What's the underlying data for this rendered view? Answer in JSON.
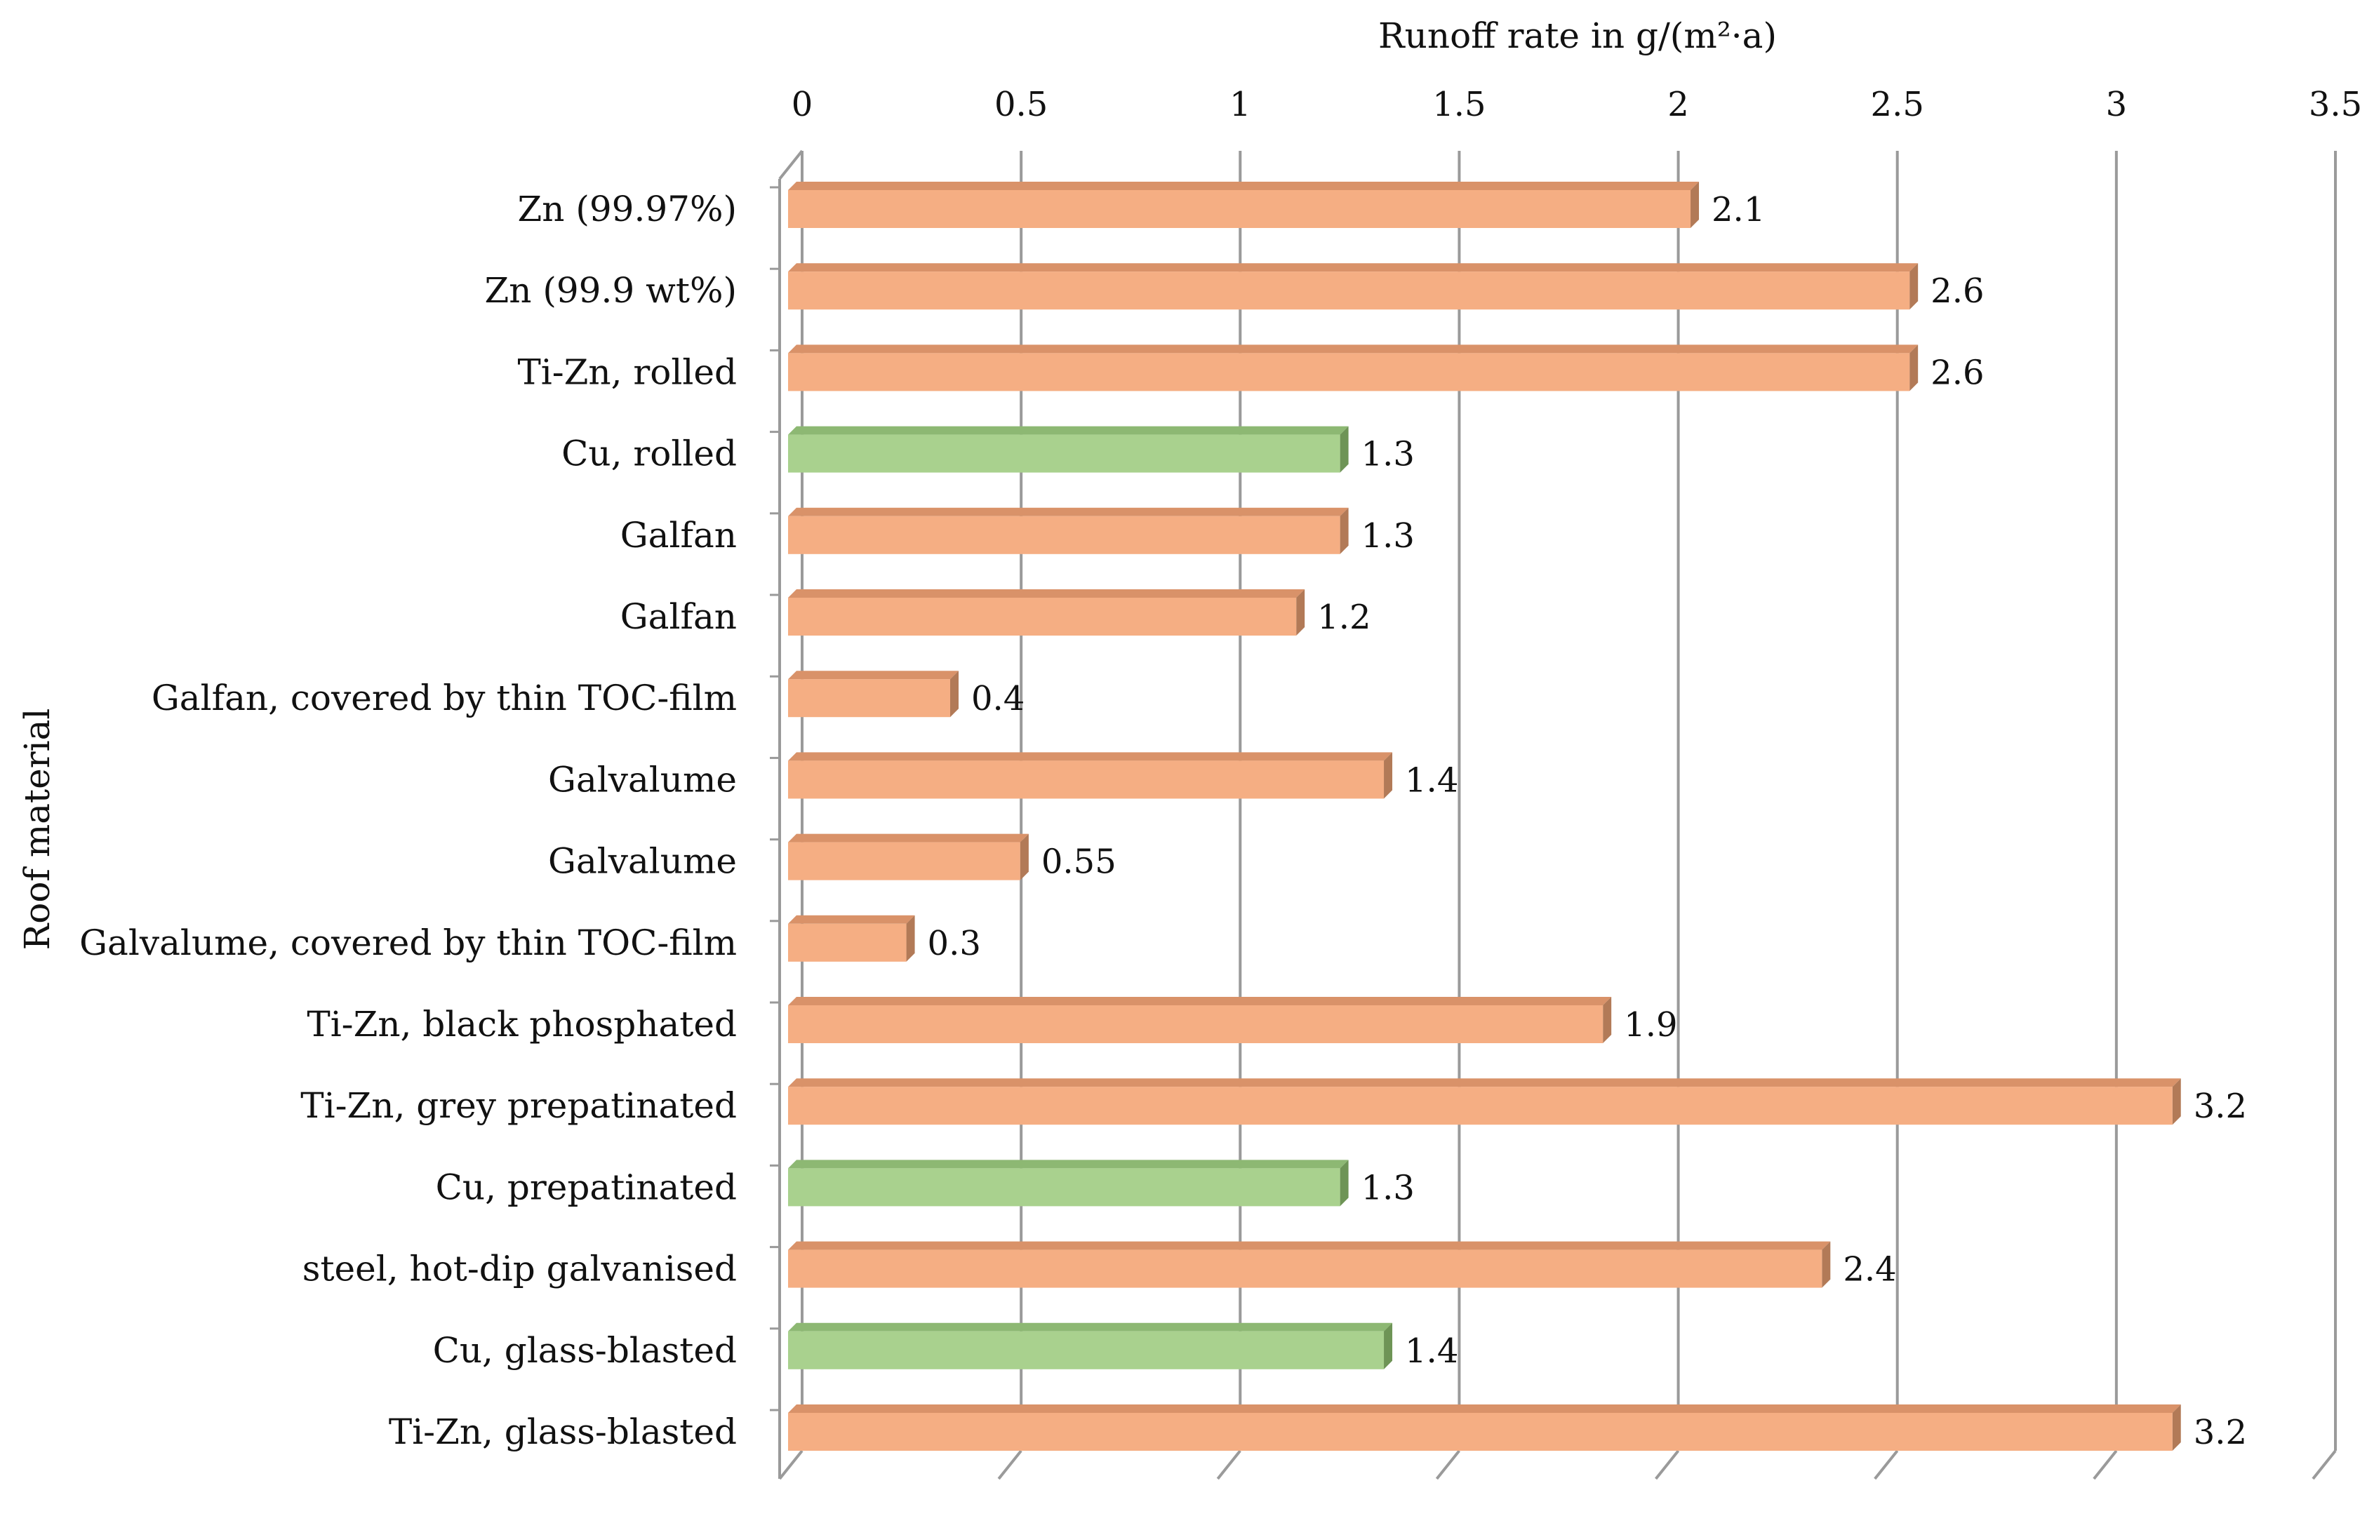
{
  "chart_data": {
    "type": "bar",
    "orientation": "horizontal",
    "title": "",
    "xlabel": "Runoff rate in g/(m²·a)",
    "ylabel": "Roof material",
    "xlim": [
      0,
      3.5
    ],
    "x_ticks": [
      "0",
      "0.5",
      "1",
      "1.5",
      "2",
      "2.5",
      "3",
      "3.5"
    ],
    "x_tick_values": [
      0,
      0.5,
      1,
      1.5,
      2,
      2.5,
      3,
      3.5
    ],
    "grid": "vertical",
    "categories": [
      "Zn (99.97%)",
      "Zn (99.9 wt%)",
      "Ti-Zn, rolled",
      "Cu, rolled",
      "Galfan",
      "Galfan",
      "Galfan, covered by thin TOC-film",
      "Galvalume",
      "Galvalume",
      "Galvalume, covered by thin TOC-film",
      "Ti-Zn, black phosphated",
      "Ti-Zn, grey prepatinated",
      "Cu, prepatinated",
      "steel, hot-dip galvanised",
      "Cu, glass-blasted",
      "Ti-Zn, glass-blasted"
    ],
    "values": [
      2.1,
      2.6,
      2.6,
      1.3,
      1.3,
      1.2,
      0.4,
      1.4,
      0.55,
      0.3,
      1.9,
      3.2,
      1.3,
      2.4,
      1.4,
      3.2
    ],
    "value_labels": [
      "2.1",
      "2.6",
      "2.6",
      "1.3",
      "1.3",
      "1.2",
      "0.4",
      "1.4",
      "0.55",
      "0.3",
      "1.9",
      "3.2",
      "1.3",
      "2.4",
      "1.4",
      "3.2"
    ],
    "bar_values_drawn": [
      2.06,
      2.56,
      2.56,
      1.26,
      1.26,
      1.16,
      0.37,
      1.36,
      0.53,
      0.27,
      1.86,
      3.16,
      1.26,
      2.36,
      1.36,
      3.16
    ],
    "bar_groups": [
      "zn",
      "zn",
      "zn",
      "cu",
      "zn",
      "zn",
      "zn",
      "zn",
      "zn",
      "zn",
      "zn",
      "zn",
      "cu",
      "zn",
      "cu",
      "zn"
    ],
    "colors": {
      "zn": {
        "face": "#F5AE83",
        "top": "#D99269",
        "side": "#B27A57"
      },
      "cu": {
        "face": "#A9D18E",
        "top": "#8DB873",
        "side": "#6E9456"
      },
      "grid": "#9A9A9A"
    }
  }
}
